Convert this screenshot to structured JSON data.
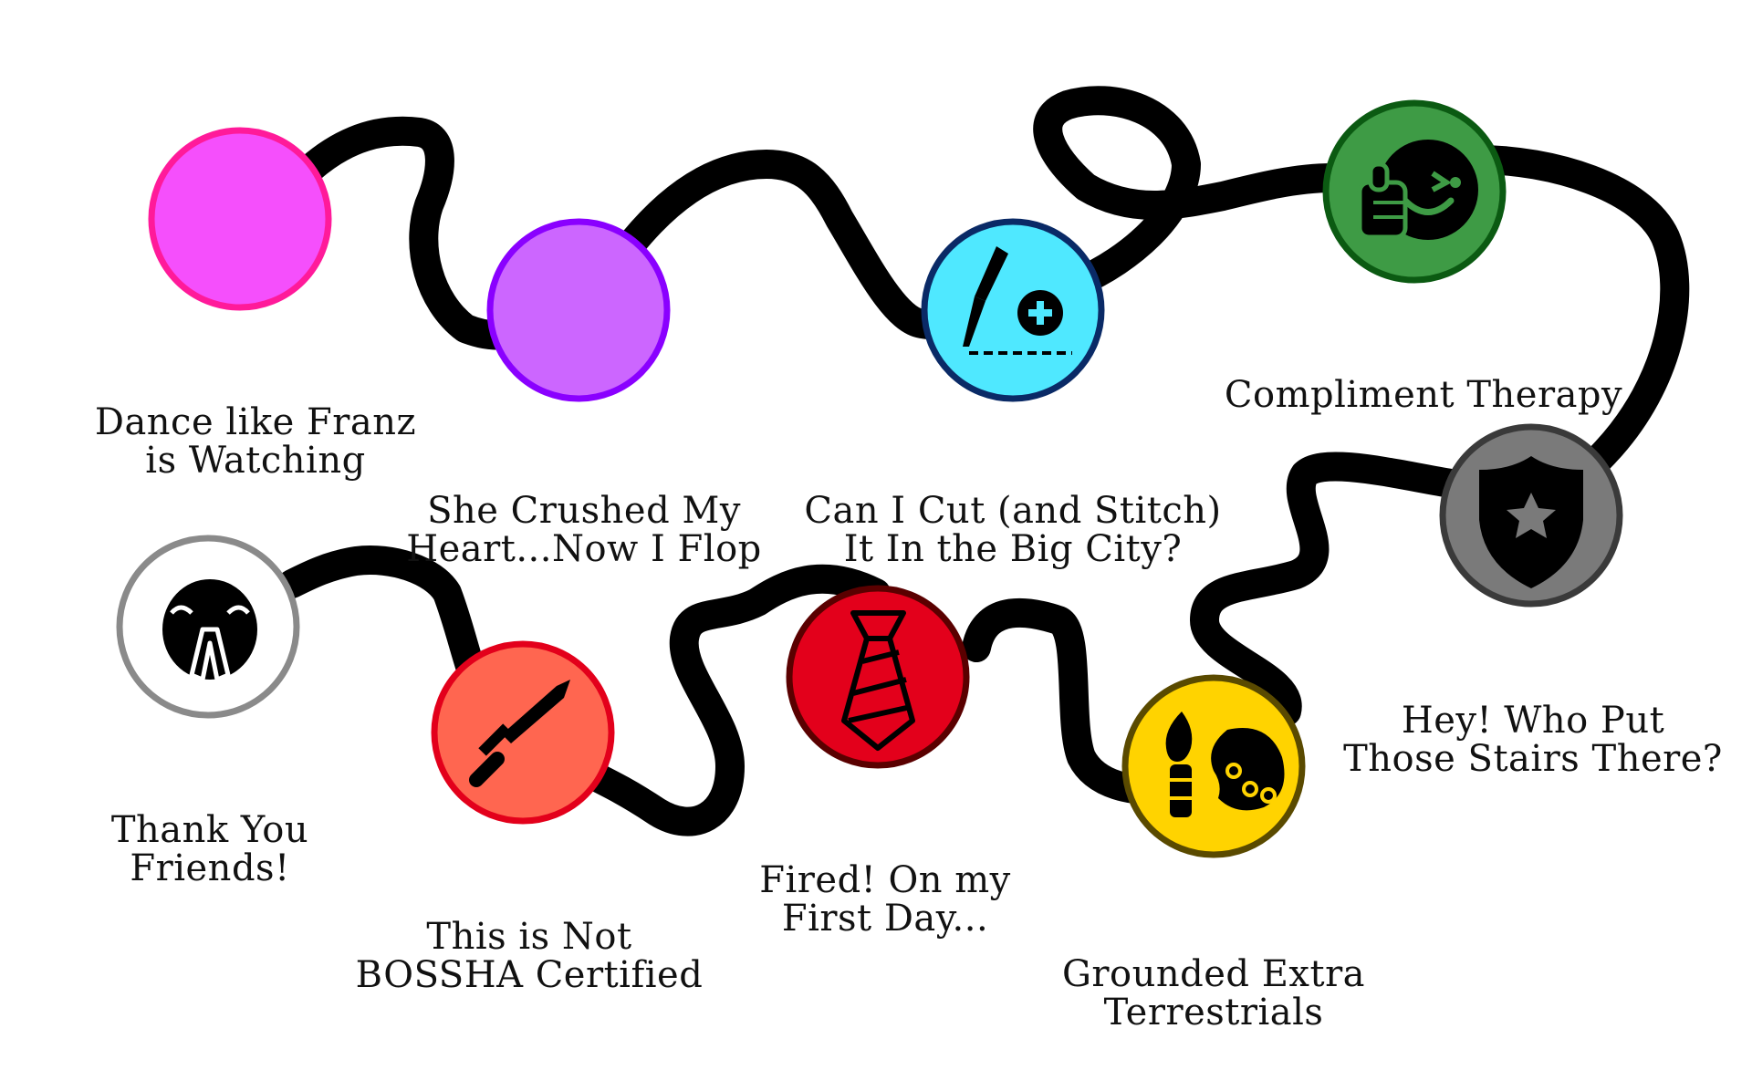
{
  "levels": [
    {
      "id": "dance",
      "title_lines": [
        "Dance like Franz",
        "is Watching"
      ],
      "fill": "#f54ffc",
      "stroke": "#ff1a9a",
      "icon": "none"
    },
    {
      "id": "crushed",
      "title_lines": [
        "She Crushed My",
        "Heart...Now I Flop"
      ],
      "fill": "#cc66ff",
      "stroke": "#8a00ff",
      "icon": "none"
    },
    {
      "id": "cut",
      "title_lines": [
        "Can I Cut (and Stitch)",
        "It In the Big City?"
      ],
      "fill": "#4fe8ff",
      "stroke": "#0a2a66",
      "icon": "scalpel-icon"
    },
    {
      "id": "compliment",
      "title_lines": [
        "Compliment Therapy"
      ],
      "fill": "#3e9b45",
      "stroke": "#0b5a12",
      "icon": "thumbs-up-wink-icon"
    },
    {
      "id": "stairs",
      "title_lines": [
        "Hey! Who Put",
        "Those Stairs There?"
      ],
      "fill": "#7a7a7a",
      "stroke": "#3a3a3a",
      "icon": "shield-star-icon"
    },
    {
      "id": "grounded",
      "title_lines": [
        "Grounded Extra",
        "Terrestrials"
      ],
      "fill": "#ffd300",
      "stroke": "#5a4a00",
      "icon": "paint-palette-icon"
    },
    {
      "id": "fired",
      "title_lines": [
        "Fired! On my",
        "First Day..."
      ],
      "fill": "#e3001b",
      "stroke": "#5a0000",
      "icon": "necktie-icon"
    },
    {
      "id": "bossha",
      "title_lines": [
        "This is Not",
        "BOSSHA Certified"
      ],
      "fill": "#ff6650",
      "stroke": "#e3001b",
      "icon": "sword-icon"
    },
    {
      "id": "thanks",
      "title_lines": [
        "Thank You",
        "Friends!"
      ],
      "fill": "#ffffff",
      "stroke": "#8a8a8a",
      "icon": "praying-face-icon"
    }
  ]
}
